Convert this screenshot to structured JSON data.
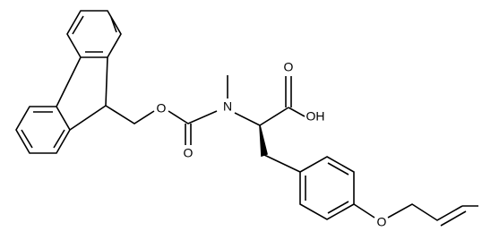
{
  "atoms": [
    {
      "label": "O"
    },
    {
      "label": "O"
    },
    {
      "label": "N"
    },
    {
      "label": "O"
    },
    {
      "label": "OH"
    },
    {
      "label": "O"
    }
  ]
}
